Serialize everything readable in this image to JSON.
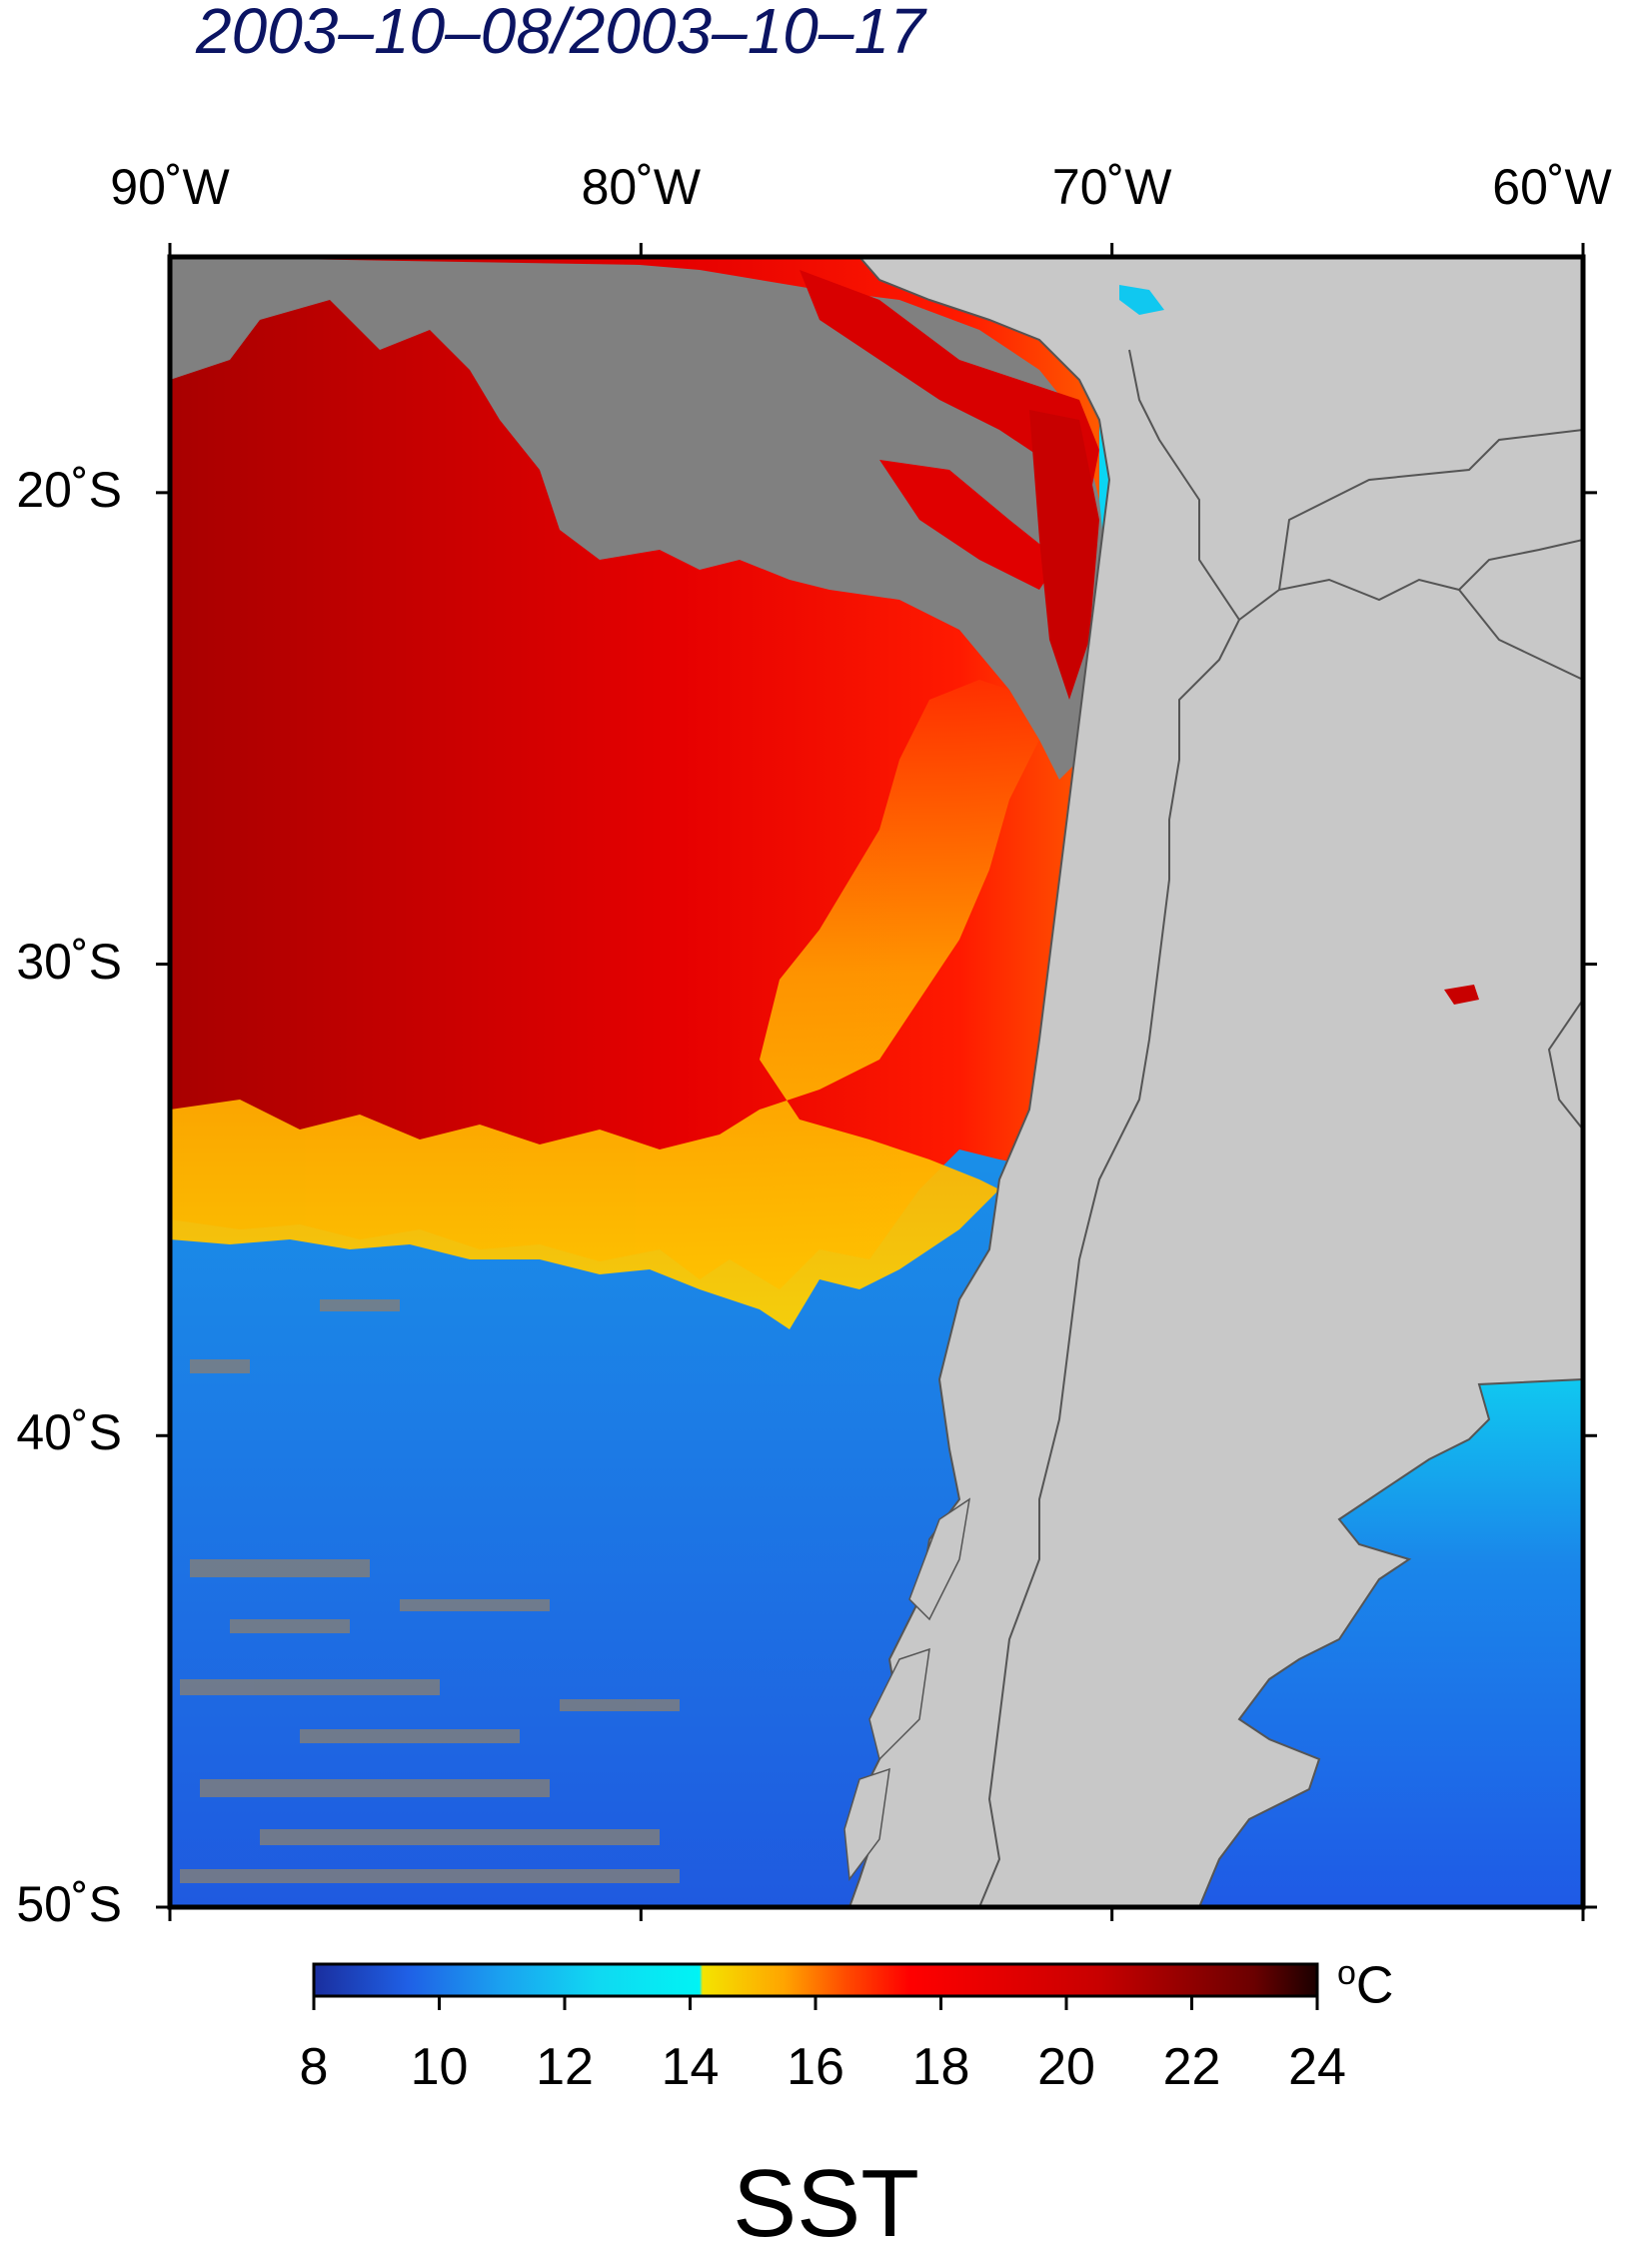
{
  "title": "2003–10–08/2003–10–17",
  "map": {
    "lon_ticks": [
      {
        "lon": -90,
        "label": "90˚W"
      },
      {
        "lon": -80,
        "label": "80˚W"
      },
      {
        "lon": -70,
        "label": "70˚W"
      },
      {
        "lon": -60,
        "label": "60˚W"
      }
    ],
    "lat_ticks": [
      {
        "lat": -20,
        "label": "20˚S"
      },
      {
        "lat": -30,
        "label": "30˚S"
      },
      {
        "lat": -40,
        "label": "40˚S"
      },
      {
        "lat": -50,
        "label": "50˚S"
      }
    ],
    "lon_range": [
      -90,
      -60
    ],
    "lat_range": [
      -50,
      -15
    ],
    "colors": {
      "land": "#c8c8c8",
      "no_data": "#808080",
      "coastline": "#555555",
      "frame": "#000000"
    }
  },
  "colorbar": {
    "units": "C",
    "units_prefix": "o",
    "range": [
      8,
      24
    ],
    "ticks": [
      "8",
      "10",
      "12",
      "14",
      "16",
      "18",
      "20",
      "22",
      "24"
    ],
    "stops": [
      {
        "value": 8,
        "color": "#1a2e9e"
      },
      {
        "value": 9.5,
        "color": "#1f60e6"
      },
      {
        "value": 11,
        "color": "#1aa2f0"
      },
      {
        "value": 12.5,
        "color": "#10d8f2"
      },
      {
        "value": 14.15,
        "color": "#00f4f4"
      },
      {
        "value": 14.2,
        "color": "#f4e400"
      },
      {
        "value": 15.5,
        "color": "#ffa400"
      },
      {
        "value": 16.5,
        "color": "#ff4a00"
      },
      {
        "value": 17.5,
        "color": "#ff0000"
      },
      {
        "value": 20.5,
        "color": "#c80000"
      },
      {
        "value": 23,
        "color": "#6a0000"
      },
      {
        "value": 24,
        "color": "#1a0000"
      }
    ]
  },
  "variable_label": "SST"
}
